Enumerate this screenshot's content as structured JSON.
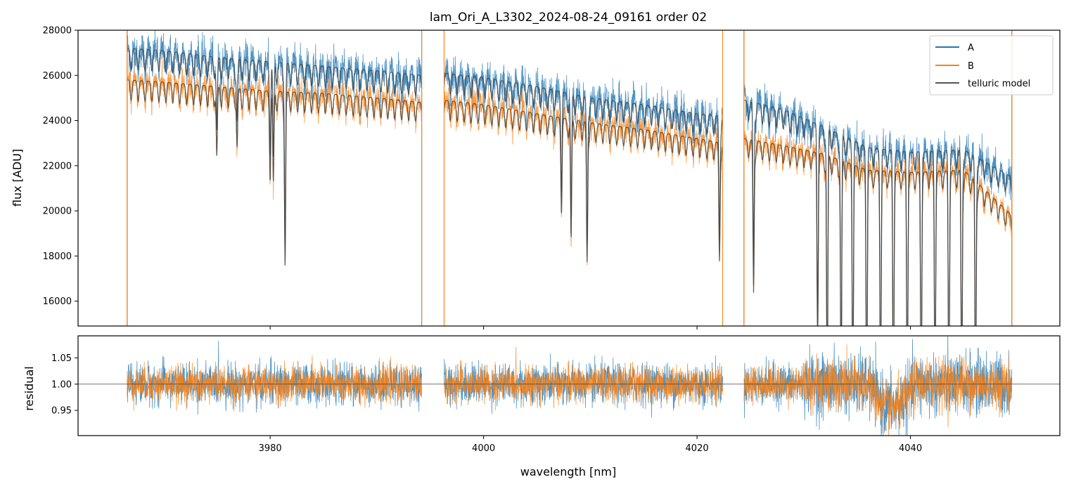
{
  "figure": {
    "title": "lam_Ori_A_L3302_2024-08-24_09161  order 02"
  },
  "chart_data": [
    {
      "type": "line",
      "panel": "top",
      "title": "lam_Ori_A_L3302_2024-08-24_09161  order 02",
      "xlabel": "",
      "ylabel": "flux [ADU]",
      "xlim": [
        3962,
        4054
      ],
      "ylim": [
        14900,
        28000
      ],
      "yticks": [
        16000,
        18000,
        20000,
        22000,
        24000,
        26000,
        28000
      ],
      "ytick_labels": [
        "16000",
        "18000",
        "20000",
        "22000",
        "24000",
        "26000",
        "28000"
      ],
      "xticks": [
        3980,
        4000,
        4020,
        4040
      ],
      "segments": [
        [
          3966.6,
          3994.2
        ],
        [
          3996.3,
          4022.4
        ],
        [
          4024.4,
          4049.5
        ]
      ],
      "legend_position": "top-right",
      "grid": false,
      "series": [
        {
          "name": "A",
          "color": "#1f77b4",
          "x": [
            3966.6,
            3970,
            3975,
            3980,
            3985,
            3990,
            3994.2,
            3996.3,
            4000,
            4005,
            4010,
            4015,
            4020,
            4022.4,
            4024.4,
            4028,
            4032,
            4036,
            4040,
            4045,
            4049.5
          ],
          "y": [
            27200,
            27100,
            26800,
            26600,
            26400,
            26200,
            26000,
            26100,
            25900,
            25500,
            25000,
            24700,
            24300,
            24200,
            24900,
            24500,
            23700,
            22800,
            22600,
            22700,
            21500
          ]
        },
        {
          "name": "B",
          "color": "#ff7f0e",
          "x": [
            3966.6,
            3970,
            3975,
            3980,
            3985,
            3990,
            3994.2,
            3996.3,
            4000,
            4005,
            4010,
            4015,
            4020,
            4022.4,
            4024.4,
            4028,
            4032,
            4036,
            4040,
            4045,
            4049.5
          ],
          "y": [
            25800,
            25700,
            25500,
            25300,
            25200,
            25000,
            24800,
            24900,
            24700,
            24300,
            23900,
            23600,
            23200,
            23000,
            23200,
            22900,
            22500,
            21800,
            21700,
            21800,
            19800
          ]
        },
        {
          "name": "telluric model",
          "color": "#444444",
          "x": [
            3966.6,
            3994.2,
            3996.3,
            4022.4,
            4024.4,
            4049.5
          ],
          "y": [
            27200,
            26000,
            26100,
            24200,
            24900,
            21500
          ]
        }
      ],
      "absorption_lines": [
        {
          "x": 3975.0,
          "depth": 0.12
        },
        {
          "x": 3976.9,
          "depth": 0.1
        },
        {
          "x": 3980.0,
          "depth": 0.13
        },
        {
          "x": 3980.3,
          "depth": 0.16
        },
        {
          "x": 3981.4,
          "depth": 0.3
        },
        {
          "x": 4008.2,
          "depth": 0.22
        },
        {
          "x": 4009.7,
          "depth": 0.26
        },
        {
          "x": 4007.3,
          "depth": 0.15
        },
        {
          "x": 4022.1,
          "depth": 0.22
        },
        {
          "x": 4025.3,
          "depth": 0.29
        },
        {
          "x": 4031.3,
          "depth": 0.35
        },
        {
          "x": 4032.2,
          "depth": 0.5
        },
        {
          "x": 4033.5,
          "depth": 0.5
        },
        {
          "x": 4034.6,
          "depth": 0.5
        },
        {
          "x": 4035.9,
          "depth": 0.5
        },
        {
          "x": 4037.2,
          "depth": 0.5
        },
        {
          "x": 4038.4,
          "depth": 0.5
        },
        {
          "x": 4039.7,
          "depth": 0.5
        },
        {
          "x": 4041.0,
          "depth": 0.5
        },
        {
          "x": 4042.3,
          "depth": 0.5
        },
        {
          "x": 4043.6,
          "depth": 0.5
        },
        {
          "x": 4044.8,
          "depth": 0.5
        },
        {
          "x": 4046.1,
          "depth": 0.5
        }
      ]
    },
    {
      "type": "line",
      "panel": "bottom",
      "xlabel": "wavelength [nm]",
      "ylabel": "residual",
      "xlim": [
        3962,
        4054
      ],
      "ylim": [
        0.902,
        1.092
      ],
      "xticks": [
        3980,
        4000,
        4020,
        4040
      ],
      "xtick_labels": [
        "3980",
        "4000",
        "4020",
        "4040"
      ],
      "yticks": [
        0.95,
        1.0,
        1.05
      ],
      "ytick_labels": [
        "0.95",
        "1.00",
        "1.05"
      ],
      "reference_line": 1.0,
      "series": [
        {
          "name": "A",
          "color": "#1f77b4",
          "center": 1.0,
          "scatter": 0.035
        },
        {
          "name": "B",
          "color": "#ff7f0e",
          "center": 1.0,
          "scatter": 0.03
        }
      ]
    }
  ]
}
